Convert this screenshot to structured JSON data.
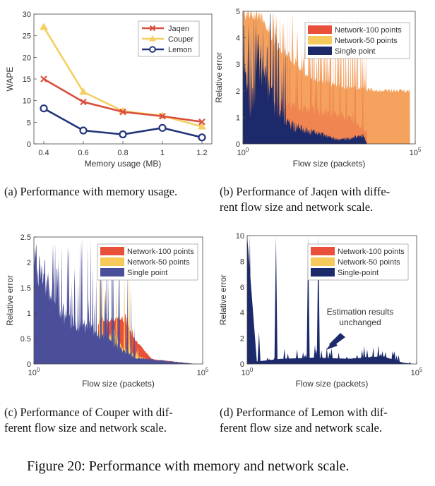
{
  "figure_caption": "Figure 20: Performance with memory and network scale.",
  "captions": {
    "a": [
      "(a)  Performance with memory usage."
    ],
    "b": [
      "(b)  Performance of Jaqen with diffe-",
      "rent flow size and network scale."
    ],
    "c": [
      "(c)  Performance of Couper with dif-",
      "ferent flow size and network scale."
    ],
    "d": [
      "(d)  Performance of Lemon with dif-",
      "ferent flow size and network scale."
    ]
  },
  "colors": {
    "red": "#e8503a",
    "yellow": "#f7c85a",
    "navy": "#1c2a6b",
    "orange": "#f4a25e",
    "purple": "#4b4f9a",
    "redline": "#d94f3d",
    "yellowline": "#f5cf63",
    "navyline": "#22357a"
  },
  "chart_data": [
    {
      "id": "a",
      "type": "line",
      "xlabel": "Memory usage (MB)",
      "ylabel": "WAPE",
      "x": [
        0.4,
        0.6,
        0.8,
        1.0,
        1.2
      ],
      "xlim": [
        0.35,
        1.25
      ],
      "ylim": [
        0,
        30
      ],
      "xticks": [
        "0.4",
        "0.6",
        "0.8",
        "1",
        "1.2"
      ],
      "yticks": [
        "0",
        "5",
        "10",
        "15",
        "20",
        "25",
        "30"
      ],
      "series": [
        {
          "name": "Jaqen",
          "values": [
            15.0,
            9.7,
            7.4,
            6.4,
            5.1
          ]
        },
        {
          "name": "Couper",
          "values": [
            27.0,
            12.0,
            7.6,
            6.5,
            4.0
          ]
        },
        {
          "name": "Lemon",
          "values": [
            8.2,
            3.1,
            2.2,
            3.7,
            1.5
          ]
        }
      ],
      "legend": "top-right"
    },
    {
      "id": "b",
      "type": "area",
      "xlabel": "Flow size (packets)",
      "ylabel": "Relative error",
      "xlim_log10": [
        0,
        5
      ],
      "ylim": [
        0,
        5
      ],
      "xticks": [
        "10^0",
        "10^5"
      ],
      "yticks": [
        "0",
        "1",
        "2",
        "3",
        "4",
        "5"
      ],
      "series": [
        {
          "name": "Network-100 points",
          "description": "overlaps Network-50 band, dense spikes up to 5 below 10^1, ~2.1 plateau above"
        },
        {
          "name": "Network-50 points",
          "values_log_x": [
            [
              0.0,
              5
            ],
            [
              0.5,
              5
            ],
            [
              1.0,
              3.8
            ],
            [
              2.0,
              2.5
            ],
            [
              3.0,
              2.2
            ],
            [
              4.0,
              2.1
            ],
            [
              4.85,
              2.1
            ]
          ]
        },
        {
          "name": "Single point",
          "values_log_x": [
            [
              0.0,
              4.8
            ],
            [
              0.2,
              1.5
            ],
            [
              0.5,
              4.0
            ],
            [
              1.0,
              1.5
            ],
            [
              1.5,
              0.9
            ],
            [
              2.0,
              0.6
            ],
            [
              2.8,
              0.2
            ],
            [
              3.5,
              0.4
            ],
            [
              3.6,
              0
            ]
          ]
        }
      ],
      "legend": "top-right"
    },
    {
      "id": "c",
      "type": "area",
      "xlabel": "Flow size (packets)",
      "ylabel": "Relative error",
      "xlim_log10": [
        0,
        5
      ],
      "ylim": [
        0,
        2.5
      ],
      "xticks": [
        "10^0",
        "10^5"
      ],
      "yticks": [
        "0",
        "0.5",
        "1",
        "1.5",
        "2",
        "2.5"
      ],
      "series": [
        {
          "name": "Network-100 points",
          "values_log_x": [
            [
              1.9,
              0.85
            ],
            [
              2.2,
              0.9
            ],
            [
              2.6,
              0.95
            ],
            [
              3.0,
              0.5
            ],
            [
              3.5,
              0.1
            ],
            [
              4.8,
              0
            ]
          ]
        },
        {
          "name": "Network-50 points",
          "values_log_x": [
            [
              1.9,
              0.6
            ],
            [
              2.4,
              0.7
            ],
            [
              2.7,
              0.3
            ],
            [
              3.5,
              0.05
            ],
            [
              4.8,
              0
            ]
          ]
        },
        {
          "name": "Single point",
          "values_log_x": [
            [
              0.0,
              2.5
            ],
            [
              0.5,
              1.8
            ],
            [
              1.0,
              1.0
            ],
            [
              1.5,
              0.9
            ],
            [
              2.0,
              0.7
            ],
            [
              2.5,
              0.4
            ],
            [
              3.0,
              0.15
            ],
            [
              4.8,
              0
            ]
          ]
        }
      ],
      "legend": "top-right"
    },
    {
      "id": "d",
      "type": "area",
      "xlabel": "Flow size (packets)",
      "ylabel": "Relative error",
      "xlim_log10": [
        0,
        5
      ],
      "ylim": [
        0,
        10
      ],
      "xticks": [
        "10^0",
        "10^5"
      ],
      "yticks": [
        "0",
        "2",
        "4",
        "6",
        "8",
        "10"
      ],
      "series": [
        {
          "name": "Network-100 points"
        },
        {
          "name": "Network-50 points"
        },
        {
          "name": "Single-point",
          "values_log_x": [
            [
              0.0,
              10
            ],
            [
              0.3,
              0.5
            ],
            [
              0.8,
              10
            ],
            [
              1.0,
              0.4
            ],
            [
              1.8,
              10
            ],
            [
              2.2,
              10
            ],
            [
              2.5,
              0.8
            ],
            [
              3.0,
              0.4
            ],
            [
              4.0,
              0.7
            ],
            [
              4.6,
              0.1
            ],
            [
              4.9,
              0
            ]
          ]
        }
      ],
      "annotation": [
        "Estimation results",
        "unchanged"
      ],
      "legend": "top-right"
    }
  ]
}
